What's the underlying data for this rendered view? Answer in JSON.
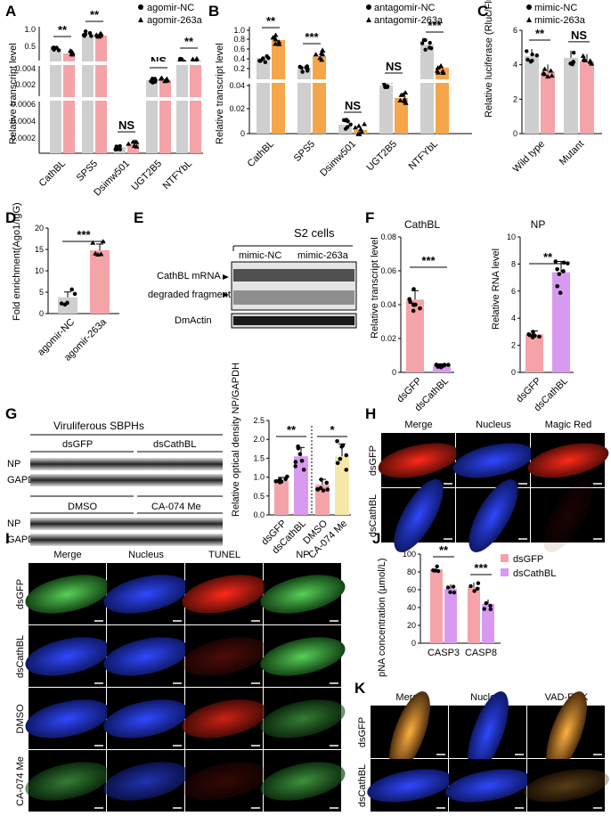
{
  "panels": {
    "A": "A",
    "B": "B",
    "C": "C",
    "D": "D",
    "E": "E",
    "F": "F",
    "G": "G",
    "H": "H",
    "I": "I",
    "J": "J",
    "K": "K"
  },
  "colors": {
    "grey": "#cfcfcf",
    "pink": "#f4a3a8",
    "orange": "#f5a64a",
    "violet": "#d79af0",
    "cream": "#f5e8a8",
    "blue": "#2a3cd8",
    "red": "#e8231c",
    "green": "#3aa63a",
    "orange_fl": "#f0a030"
  },
  "chart_data": [
    {
      "id": "A",
      "type": "bar",
      "ylabel": "Relative transcript level",
      "categories": [
        "CathBL",
        "SPS5",
        "Dsimw501",
        "UGT2B5",
        "NTFYbL"
      ],
      "legend": [
        "agomir-NC",
        "agomir-263a"
      ],
      "axis_breaks": [
        {
          "ticks": [
            "0.0002",
            "0.0004",
            "0.0006"
          ]
        },
        {
          "ticks": [
            "0.002",
            "0.004"
          ]
        },
        {
          "ticks": [
            "0.5",
            "1.0"
          ]
        }
      ],
      "series": [
        {
          "name": "agomir-NC",
          "values": [
            0.55,
            0.2,
            0.0001,
            0.009,
            0.18
          ]
        },
        {
          "name": "agomir-263a",
          "values": [
            0.35,
            0.18,
            0.00012,
            0.009,
            0.19
          ]
        }
      ],
      "significance": [
        "**",
        "**",
        "NS",
        "NS",
        "**"
      ]
    },
    {
      "id": "B",
      "type": "bar",
      "ylabel": "Relative transcript level",
      "categories": [
        "CathBL",
        "SPS5",
        "Dsimw501",
        "UGT2B5",
        "NTFYbL"
      ],
      "legend": [
        "antagomir-NC",
        "antagomir-263a"
      ],
      "axis_breaks": [
        {
          "ticks": [
            "0",
            "0.02",
            "0.04"
          ]
        },
        {
          "ticks": [
            "0.2",
            "0.4",
            "0.6",
            "0.8",
            "1.0"
          ]
        }
      ],
      "series": [
        {
          "name": "antagomir-NC",
          "values": [
            0.35,
            0.2,
            0.015,
            0.04,
            0.55
          ]
        },
        {
          "name": "antagomir-263a",
          "values": [
            0.65,
            0.4,
            0.008,
            0.02,
            0.15
          ]
        }
      ],
      "significance": [
        "**",
        "***",
        "NS",
        "NS",
        "***"
      ]
    },
    {
      "id": "C",
      "type": "bar",
      "ylabel": "Relative luciferase (Rluc/Fluc)",
      "categories": [
        "Wild type",
        "Mutant"
      ],
      "legend": [
        "mimic-NC",
        "mimic-263a"
      ],
      "yticks": [
        "0",
        "2",
        "4",
        "6"
      ],
      "ylim": [
        0,
        6
      ],
      "series": [
        {
          "name": "mimic-NC",
          "values": [
            4.5,
            4.4
          ]
        },
        {
          "name": "mimic-263a",
          "values": [
            3.6,
            4.2
          ]
        }
      ],
      "significance": [
        "**",
        "NS"
      ]
    },
    {
      "id": "D",
      "type": "bar",
      "ylabel": "Fold enrichment(Ago1/IgG)",
      "categories": [
        "agomir-NC",
        "agomir-263a"
      ],
      "yticks": [
        "0",
        "5",
        "10",
        "15",
        "20"
      ],
      "ylim": [
        0,
        20
      ],
      "values": [
        3.8,
        14.8
      ],
      "significance": [
        "***"
      ]
    },
    {
      "id": "F1",
      "type": "bar",
      "title": "CathBL",
      "ylabel": "Relative transcript level",
      "categories": [
        "dsGFP",
        "dsCathBL"
      ],
      "yticks": [
        "0",
        "0.02",
        "0.04",
        "0.06",
        "0.08"
      ],
      "ylim": [
        0,
        0.08
      ],
      "values": [
        0.043,
        0.004
      ],
      "significance": [
        "***"
      ]
    },
    {
      "id": "F2",
      "type": "bar",
      "title": "NP",
      "ylabel": "Relative RNA level",
      "categories": [
        "dsGFP",
        "dsCathBL"
      ],
      "yticks": [
        "0",
        "2",
        "4",
        "6",
        "8",
        "10"
      ],
      "ylim": [
        0,
        10
      ],
      "values": [
        2.8,
        7.4
      ],
      "significance": [
        "**"
      ]
    },
    {
      "id": "G",
      "type": "bar",
      "ylabel": "Relative optical density NP/GAPDH",
      "categories": [
        "dsGFP",
        "dsCathBL",
        "DMSO",
        "CA-074 Me"
      ],
      "yticks": [
        "0.0",
        "0.5",
        "1.0",
        "1.5",
        "2.0",
        "2.5"
      ],
      "ylim": [
        0,
        2.5
      ],
      "values": [
        0.9,
        1.55,
        0.8,
        1.55
      ],
      "significance": [
        "**",
        "*"
      ]
    },
    {
      "id": "J",
      "type": "bar",
      "ylabel": "pNA concentration (µmol/L)",
      "categories": [
        "CASP3",
        "CASP8"
      ],
      "legend": [
        "dsGFP",
        "dsCathBL"
      ],
      "yticks": [
        "0",
        "20",
        "40",
        "60",
        "80",
        "100"
      ],
      "ylim": [
        0,
        100
      ],
      "series": [
        {
          "name": "dsGFP",
          "values": [
            83,
            63
          ]
        },
        {
          "name": "dsCathBL",
          "values": [
            61,
            44
          ]
        }
      ],
      "significance": [
        "**",
        "***"
      ]
    }
  ],
  "E": {
    "title": "S2 cells",
    "groups": [
      "mimic-NC",
      "mimic-263a"
    ],
    "labels": [
      "CathBL mRNA",
      "degraded fragment",
      "DmActin"
    ]
  },
  "G_blot": {
    "title": "Viruliferous SBPHs",
    "groups1": [
      "dsGFP",
      "dsCathBL"
    ],
    "groups2": [
      "DMSO",
      "CA-074 Me"
    ],
    "rows": [
      "NP",
      "GAPDH",
      "NP",
      "GAPDH"
    ]
  },
  "H": {
    "cols": [
      "Merge",
      "Nucleus",
      "Magic Red"
    ],
    "rows": [
      "dsGFP",
      "dsCathBL"
    ]
  },
  "I": {
    "cols": [
      "Merge",
      "Nucleus",
      "TUNEL",
      "NP"
    ],
    "rows": [
      "dsGFP",
      "dsCathBL",
      "DMSO",
      "CA-074 Me"
    ]
  },
  "K": {
    "cols": [
      "Merge",
      "Nucleus",
      "VAD-FMK"
    ],
    "rows": [
      "dsGFP",
      "dsCathBL"
    ]
  }
}
